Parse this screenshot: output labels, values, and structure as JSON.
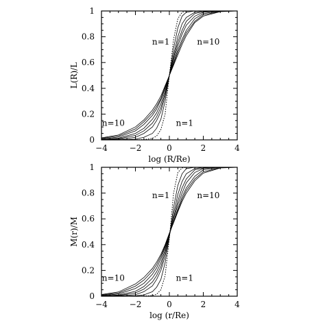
{
  "chart_data": [
    {
      "type": "line",
      "title": "",
      "xlabel": "log (R/Re)",
      "ylabel": "L(R)/L",
      "xlim": [
        -4,
        4
      ],
      "ylim": [
        0,
        1
      ],
      "xticks": [
        -4,
        -2,
        0,
        2,
        4
      ],
      "yticks": [
        0,
        0.2,
        0.4,
        0.6,
        0.8,
        1
      ],
      "xtick_labels": [
        "−4",
        "−2",
        "0",
        "2",
        "4"
      ],
      "ytick_labels": [
        "0",
        "0.2",
        "0.4",
        "0.6",
        "0.8",
        "1"
      ],
      "grid": false,
      "annotations": [
        {
          "text": "n=1",
          "x": -0.5,
          "y": 0.74
        },
        {
          "text": "n=10",
          "x": 2.3,
          "y": 0.74
        },
        {
          "text": "n=10",
          "x": -3.3,
          "y": 0.11
        },
        {
          "text": "n=1",
          "x": 0.9,
          "y": 0.11
        }
      ],
      "series": [
        {
          "n": 0.5,
          "style": "dotted",
          "x": [
            -4,
            -3,
            -2,
            -1.5,
            -1,
            -0.75,
            -0.5,
            -0.25,
            0,
            0.25,
            0.5,
            0.75,
            1,
            1.5,
            2,
            3,
            4
          ],
          "y": [
            0,
            0,
            0.001,
            0.002,
            0.012,
            0.03,
            0.08,
            0.2,
            0.5,
            0.78,
            0.94,
            0.99,
            1,
            1,
            1,
            1,
            1
          ]
        },
        {
          "n": 1,
          "style": "solid",
          "x": [
            -4,
            -3,
            -2,
            -1.5,
            -1,
            -0.75,
            -0.5,
            -0.25,
            0,
            0.25,
            0.5,
            0.75,
            1,
            1.5,
            2,
            3,
            4
          ],
          "y": [
            0,
            0.001,
            0.006,
            0.02,
            0.05,
            0.09,
            0.16,
            0.3,
            0.5,
            0.71,
            0.87,
            0.96,
            0.99,
            1,
            1,
            1,
            1
          ]
        },
        {
          "n": 2,
          "style": "solid",
          "x": [
            -4,
            -3,
            -2,
            -1.5,
            -1,
            -0.75,
            -0.5,
            -0.25,
            0,
            0.25,
            0.5,
            0.75,
            1,
            1.5,
            2,
            3,
            4
          ],
          "y": [
            0.001,
            0.004,
            0.02,
            0.05,
            0.1,
            0.15,
            0.22,
            0.34,
            0.5,
            0.66,
            0.8,
            0.9,
            0.95,
            0.99,
            1,
            1,
            1
          ]
        },
        {
          "n": 3,
          "style": "solid",
          "x": [
            -4,
            -3,
            -2,
            -1.5,
            -1,
            -0.75,
            -0.5,
            -0.25,
            0,
            0.25,
            0.5,
            0.75,
            1,
            1.5,
            2,
            3,
            4
          ],
          "y": [
            0.002,
            0.008,
            0.035,
            0.07,
            0.13,
            0.18,
            0.25,
            0.36,
            0.5,
            0.64,
            0.76,
            0.85,
            0.92,
            0.98,
            0.995,
            1,
            1
          ]
        },
        {
          "n": 4,
          "style": "solid",
          "x": [
            -4,
            -3,
            -2,
            -1.5,
            -1,
            -0.75,
            -0.5,
            -0.25,
            0,
            0.25,
            0.5,
            0.75,
            1,
            1.5,
            2,
            3,
            4
          ],
          "y": [
            0.004,
            0.013,
            0.05,
            0.09,
            0.16,
            0.21,
            0.28,
            0.38,
            0.5,
            0.62,
            0.73,
            0.82,
            0.89,
            0.96,
            0.99,
            1,
            1
          ]
        },
        {
          "n": 6,
          "style": "solid",
          "x": [
            -4,
            -3,
            -2,
            -1.5,
            -1,
            -0.75,
            -0.5,
            -0.25,
            0,
            0.25,
            0.5,
            0.75,
            1,
            1.5,
            2,
            3,
            4
          ],
          "y": [
            0.008,
            0.022,
            0.07,
            0.12,
            0.19,
            0.24,
            0.31,
            0.4,
            0.5,
            0.6,
            0.7,
            0.78,
            0.85,
            0.94,
            0.98,
            1,
            1
          ]
        },
        {
          "n": 8,
          "style": "solid",
          "x": [
            -4,
            -3,
            -2,
            -1.5,
            -1,
            -0.75,
            -0.5,
            -0.25,
            0,
            0.25,
            0.5,
            0.75,
            1,
            1.5,
            2,
            3,
            4
          ],
          "y": [
            0.012,
            0.03,
            0.085,
            0.14,
            0.21,
            0.26,
            0.32,
            0.41,
            0.5,
            0.59,
            0.68,
            0.76,
            0.83,
            0.92,
            0.97,
            0.997,
            1
          ]
        },
        {
          "n": 10,
          "style": "solid",
          "x": [
            -4,
            -3,
            -2,
            -1.5,
            -1,
            -0.75,
            -0.5,
            -0.25,
            0,
            0.25,
            0.5,
            0.75,
            1,
            1.5,
            2,
            3,
            4
          ],
          "y": [
            0.016,
            0.038,
            0.1,
            0.155,
            0.23,
            0.28,
            0.34,
            0.42,
            0.5,
            0.58,
            0.66,
            0.74,
            0.81,
            0.91,
            0.96,
            0.995,
            1
          ]
        }
      ]
    },
    {
      "type": "line",
      "title": "",
      "xlabel": "log (r/Re)",
      "ylabel": "M(r)/M",
      "xlim": [
        -4,
        4
      ],
      "ylim": [
        0,
        1
      ],
      "xticks": [
        -4,
        -2,
        0,
        2,
        4
      ],
      "yticks": [
        0,
        0.2,
        0.4,
        0.6,
        0.8,
        1
      ],
      "xtick_labels": [
        "−4",
        "−2",
        "0",
        "2",
        "4"
      ],
      "ytick_labels": [
        "0",
        "0.2",
        "0.4",
        "0.6",
        "0.8",
        "1"
      ],
      "grid": false,
      "annotations": [
        {
          "text": "n=1",
          "x": -0.5,
          "y": 0.76
        },
        {
          "text": "n=10",
          "x": 2.3,
          "y": 0.76
        },
        {
          "text": "n=10",
          "x": -3.3,
          "y": 0.12
        },
        {
          "text": "n=1",
          "x": 0.9,
          "y": 0.12
        }
      ],
      "series": [
        {
          "n": 0.5,
          "style": "dotted",
          "x": [
            -4,
            -3,
            -2,
            -1.5,
            -1,
            -0.75,
            -0.5,
            -0.25,
            0,
            0.25,
            0.5,
            0.75,
            1,
            1.5,
            2,
            3,
            4
          ],
          "y": [
            0,
            0,
            0,
            0.001,
            0.005,
            0.015,
            0.05,
            0.16,
            0.45,
            0.8,
            0.96,
            0.995,
            1,
            1,
            1,
            1,
            1
          ]
        },
        {
          "n": 1,
          "style": "solid",
          "x": [
            -4,
            -3,
            -2,
            -1.5,
            -1,
            -0.75,
            -0.5,
            -0.25,
            0,
            0.25,
            0.5,
            0.75,
            1,
            1.5,
            2,
            3,
            4
          ],
          "y": [
            0,
            0,
            0.003,
            0.01,
            0.035,
            0.07,
            0.13,
            0.26,
            0.46,
            0.69,
            0.86,
            0.95,
            0.99,
            1,
            1,
            1,
            1
          ]
        },
        {
          "n": 2,
          "style": "solid",
          "x": [
            -4,
            -3,
            -2,
            -1.5,
            -1,
            -0.75,
            -0.5,
            -0.25,
            0,
            0.25,
            0.5,
            0.75,
            1,
            1.5,
            2,
            3,
            4
          ],
          "y": [
            0,
            0.002,
            0.012,
            0.035,
            0.08,
            0.13,
            0.2,
            0.31,
            0.47,
            0.64,
            0.79,
            0.89,
            0.95,
            0.99,
            1,
            1,
            1
          ]
        },
        {
          "n": 3,
          "style": "solid",
          "x": [
            -4,
            -3,
            -2,
            -1.5,
            -1,
            -0.75,
            -0.5,
            -0.25,
            0,
            0.25,
            0.5,
            0.75,
            1,
            1.5,
            2,
            3,
            4
          ],
          "y": [
            0.001,
            0.005,
            0.025,
            0.055,
            0.11,
            0.16,
            0.23,
            0.34,
            0.47,
            0.61,
            0.74,
            0.84,
            0.91,
            0.98,
            0.995,
            1,
            1
          ]
        },
        {
          "n": 4,
          "style": "solid",
          "x": [
            -4,
            -3,
            -2,
            -1.5,
            -1,
            -0.75,
            -0.5,
            -0.25,
            0,
            0.25,
            0.5,
            0.75,
            1,
            1.5,
            2,
            3,
            4
          ],
          "y": [
            0.002,
            0.009,
            0.038,
            0.075,
            0.14,
            0.19,
            0.26,
            0.36,
            0.48,
            0.6,
            0.71,
            0.8,
            0.88,
            0.96,
            0.99,
            1,
            1
          ]
        },
        {
          "n": 6,
          "style": "solid",
          "x": [
            -4,
            -3,
            -2,
            -1.5,
            -1,
            -0.75,
            -0.5,
            -0.25,
            0,
            0.25,
            0.5,
            0.75,
            1,
            1.5,
            2,
            3,
            4
          ],
          "y": [
            0.005,
            0.017,
            0.06,
            0.1,
            0.17,
            0.22,
            0.29,
            0.38,
            0.48,
            0.58,
            0.68,
            0.77,
            0.84,
            0.93,
            0.98,
            1,
            1
          ]
        },
        {
          "n": 8,
          "style": "solid",
          "x": [
            -4,
            -3,
            -2,
            -1.5,
            -1,
            -0.75,
            -0.5,
            -0.25,
            0,
            0.25,
            0.5,
            0.75,
            1,
            1.5,
            2,
            3,
            4
          ],
          "y": [
            0.009,
            0.025,
            0.078,
            0.125,
            0.195,
            0.245,
            0.31,
            0.39,
            0.485,
            0.575,
            0.665,
            0.75,
            0.82,
            0.91,
            0.965,
            0.997,
            1
          ]
        },
        {
          "n": 10,
          "style": "solid",
          "x": [
            -4,
            -3,
            -2,
            -1.5,
            -1,
            -0.75,
            -0.5,
            -0.25,
            0,
            0.25,
            0.5,
            0.75,
            1,
            1.5,
            2,
            3,
            4
          ],
          "y": [
            0.013,
            0.033,
            0.095,
            0.145,
            0.215,
            0.265,
            0.325,
            0.4,
            0.49,
            0.57,
            0.655,
            0.735,
            0.8,
            0.895,
            0.955,
            0.995,
            1
          ]
        }
      ]
    }
  ]
}
